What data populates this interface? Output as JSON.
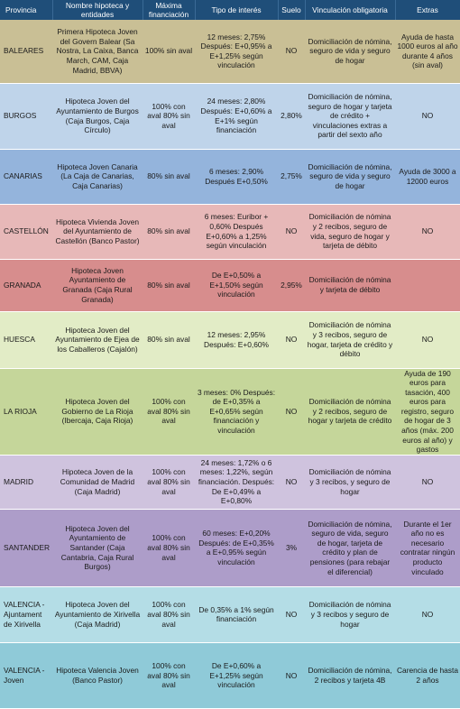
{
  "header": {
    "provincia": "Provincia",
    "nombre": "Nombre hipoteca y entidades",
    "maxima": "Máxima financiación",
    "tipo": "Tipo de interés",
    "suelo": "Suelo",
    "vinculacion": "Vinculación obligatoria",
    "extras": "Extras"
  },
  "rows": [
    {
      "provincia": "BALEARES",
      "nombre": "Primera Hipoteca Joven del Govern Balear (Sa Nostra, La Caixa, Banca March, CAM, Caja Madrid, BBVA)",
      "maxima": "100% sin aval",
      "tipo": "12 meses: 2,75% Después: E+0,95% a E+1,25% según vinculación",
      "suelo": "NO",
      "vinculacion": "Domiciliación de nómina, seguro de vida y seguro de hogar",
      "extras": "Ayuda de hasta 1000 euros al año durante 4 años (sin aval)"
    },
    {
      "provincia": "BURGOS",
      "nombre": "Hipoteca Joven del Ayuntamiento de Burgos (Caja Burgos, Caja Círculo)",
      "maxima": "100% con aval 80% sin aval",
      "tipo": "24 meses: 2,80% Después: E+0,60% a E+1% según financiación",
      "suelo": "2,80%",
      "vinculacion": "Domiciliación de nómina, seguro de hogar y tarjeta de crédito + vinculaciones extras a partir del sexto año",
      "extras": "NO"
    },
    {
      "provincia": "CANARIAS",
      "nombre": "Hipoteca Joven Canaria (La Caja de Canarias, Caja Canarias)",
      "maxima": "80% sin aval",
      "tipo": "6 meses: 2,90% Después E+0,50%",
      "suelo": "2,75%",
      "vinculacion": "Domiciliación de nómina, seguro de vida y seguro de hogar",
      "extras": "Ayuda de 3000 a 12000 euros"
    },
    {
      "provincia": "CASTELLÓN",
      "nombre": "Hipoteca Vivienda Joven del Ayuntamiento de Castellón (Banco Pastor)",
      "maxima": "80% sin aval",
      "tipo": "6 meses: Euribor + 0,60% Después E+0,60% a 1,25% según vinculación",
      "suelo": "NO",
      "vinculacion": "Domiciliación de nómina y 2 recibos, seguro de vida, seguro de hogar y tarjeta de débito",
      "extras": "NO"
    },
    {
      "provincia": "GRANADA",
      "nombre": "Hipoteca Joven Ayuntamiento de Granada (Caja Rural Granada)",
      "maxima": "80% sin aval",
      "tipo": "De E+0,50% a E+1,50% según vinculación",
      "suelo": "2,95%",
      "vinculacion": "Domiciliación de nómina y tarjeta de débito",
      "extras": ""
    },
    {
      "provincia": "HUESCA",
      "nombre": "Hipoteca Joven del Ayuntamiento de Ejea de los Caballeros (Cajalón)",
      "maxima": "80% sin aval",
      "tipo": "12 meses: 2,95% Después: E+0,60%",
      "suelo": "NO",
      "vinculacion": "Domiciliación de nómina y 3 recibos, seguro de hogar, tarjeta de crédito y débito",
      "extras": "NO"
    },
    {
      "provincia": "LA RIOJA",
      "nombre": "Hipoteca Joven del Gobierno de La Rioja (Ibercaja, Caja Rioja)",
      "maxima": "100% con aval 80% sin aval",
      "tipo": "3 meses: 0% Después: de E+0,35% a E+0,65% según financiación y vinculación",
      "suelo": "NO",
      "vinculacion": "Domiciliación de nómina y 2 recibos, seguro de hogar y tarjeta de crédito",
      "extras": "Ayuda de 190 euros para tasación, 400 euros para registro, seguro de hogar de 3 años (máx. 200 euros al año) y gastos"
    },
    {
      "provincia": "MADRID",
      "nombre": "Hipoteca Joven de la Comunidad de Madrid (Caja Madrid)",
      "maxima": "100% con aval 80% sin aval",
      "tipo": "24 meses: 1,72% o 6 meses: 1,22%, según financiación. Después: De E+0,49% a E+0,80%",
      "suelo": "NO",
      "vinculacion": "Domiciliación de nómina y 3 recibos, y seguro de hogar",
      "extras": "NO"
    },
    {
      "provincia": "SANTANDER",
      "nombre": "Hipoteca Joven del Ayuntamiento de Santander (Caja Cantabria, Caja Rural Burgos)",
      "maxima": "100% con aval 80% sin aval",
      "tipo": "60 meses: E+0,20% Después: de E+0,35% a E+0,95% según vinculación",
      "suelo": "3%",
      "vinculacion": "Domiciliación de nómina, seguro de vida, seguro de hogar, tarjeta de crédito y plan de pensiones (para rebajar el diferencial)",
      "extras": "Durante el 1er año no es necesario contratar ningún producto vinculado"
    },
    {
      "provincia": "VALENCIA - Ajuntament de Xirivella",
      "nombre": "Hipoteca Joven del Ayuntamiento de Xirivella (Caja Madrid)",
      "maxima": "100% con aval 80% sin aval",
      "tipo": "De 0,35% a 1% según financiación",
      "suelo": "NO",
      "vinculacion": "Domiciliación de nómina y 3 recibos y seguro de hogar",
      "extras": "NO"
    },
    {
      "provincia": "VALENCIA - Joven",
      "nombre": "Hipoteca Valencia Joven (Banco Pastor)",
      "maxima": "100% con aval 80% sin aval",
      "tipo": "De E+0,60% a E+1,25% según vinculación",
      "suelo": "NO",
      "vinculacion": "Domiciliación de nómina, 2 recibos y tarjeta 4B",
      "extras": "Carencia de hasta 2 años"
    }
  ]
}
